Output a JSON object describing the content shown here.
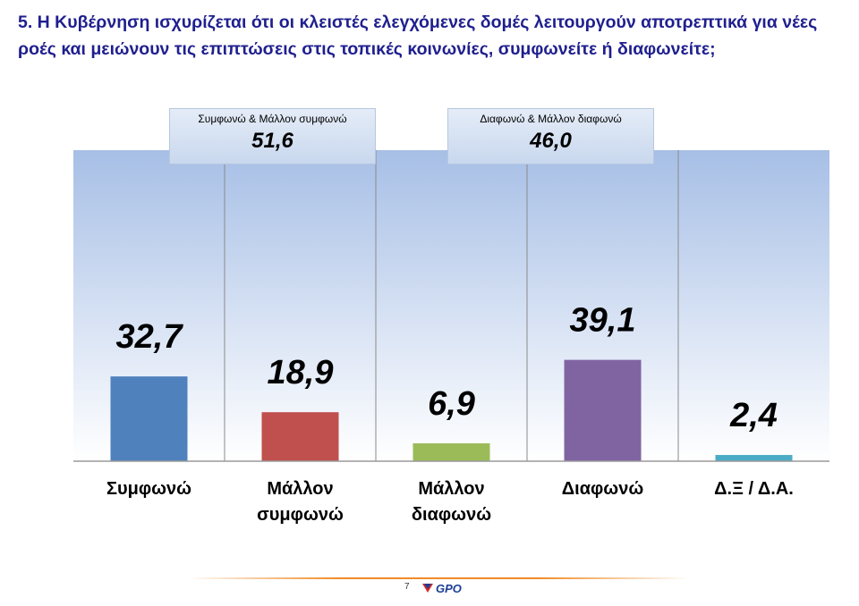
{
  "question": "5. Η Κυβέρνηση ισχυρίζεται ότι οι κλειστές ελεγχόμενες δομές λειτουργούν αποτρεπτικά για νέες ροές και μειώνουν τις επιπτώσεις στις τοπικές κοινωνίες, συμφωνείτε ή διαφωνείτε;",
  "summaries": {
    "agree": {
      "label": "Συμφωνώ & Μάλλον συμφωνώ",
      "value": "51,6"
    },
    "disagree": {
      "label": "Διαφωνώ & Μάλλον διαφωνώ",
      "value": "46,0"
    }
  },
  "chart_data": {
    "type": "bar",
    "categories": [
      [
        "Συμφωνώ"
      ],
      [
        "Μάλλον",
        "συμφωνώ"
      ],
      [
        "Μάλλον",
        "διαφωνώ"
      ],
      [
        "Διαφωνώ"
      ],
      [
        "Δ.Ξ / Δ.Α."
      ]
    ],
    "values": [
      32.7,
      18.9,
      6.9,
      39.1,
      2.4
    ],
    "value_labels": [
      "32,7",
      "18,9",
      "6,9",
      "39,1",
      "2,4"
    ],
    "colors": [
      "#4f81bd",
      "#c0504d",
      "#9bbb59",
      "#8064a2",
      "#4bacc6"
    ],
    "ylim": [
      0,
      100
    ],
    "grid": false
  },
  "footer": {
    "page_number": "7",
    "logo_text": "GPO"
  },
  "colors": {
    "title": "#1f1f8f",
    "accent_line": "#f08c28",
    "logo_blue": "#1c3f94",
    "logo_red": "#d62a2a"
  }
}
